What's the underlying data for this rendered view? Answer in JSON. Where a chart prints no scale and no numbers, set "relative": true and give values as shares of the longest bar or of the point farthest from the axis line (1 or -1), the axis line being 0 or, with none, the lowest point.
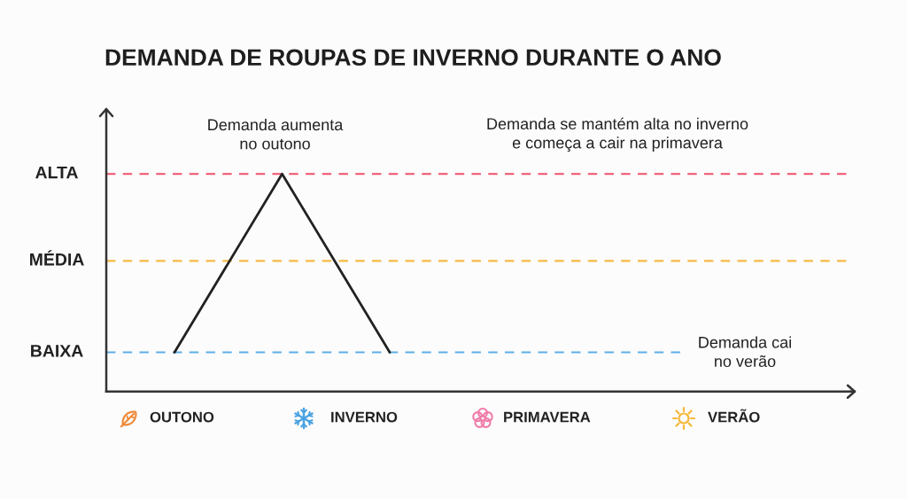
{
  "chart_data": {
    "type": "line",
    "title": "DEMANDA DE ROUPAS DE INVERNO DURANTE O ANO",
    "categories": [
      null,
      null,
      null,
      null,
      null,
      null,
      null
    ],
    "series": [
      {
        "color": "#222222",
        "values": [
          0.18,
          1,
          0.18,
          null,
          null,
          null,
          null
        ]
      }
    ],
    "relative": true,
    "ref_lines": [
      {
        "axis": "y",
        "value": 1,
        "label": "ALTA",
        "color": "#f0506a",
        "line_style": "dashed"
      },
      {
        "axis": "y",
        "value": 0.6,
        "label": "MÉDIA",
        "color": "#f5b945",
        "line_style": "dashed"
      },
      {
        "axis": "y",
        "value": 0.18,
        "label": "BAIXA",
        "color": "#5dade8",
        "line_style": "dashed"
      }
    ],
    "annotations": [
      "Demanda aumenta\nno outono",
      "Demanda se mantém alta no inverno\ne começa a cair na primavera",
      "Demanda cai\nno verão",
      "OUTONO",
      "INVERNO",
      "PRIMAVERA",
      "VERÃO"
    ]
  }
}
